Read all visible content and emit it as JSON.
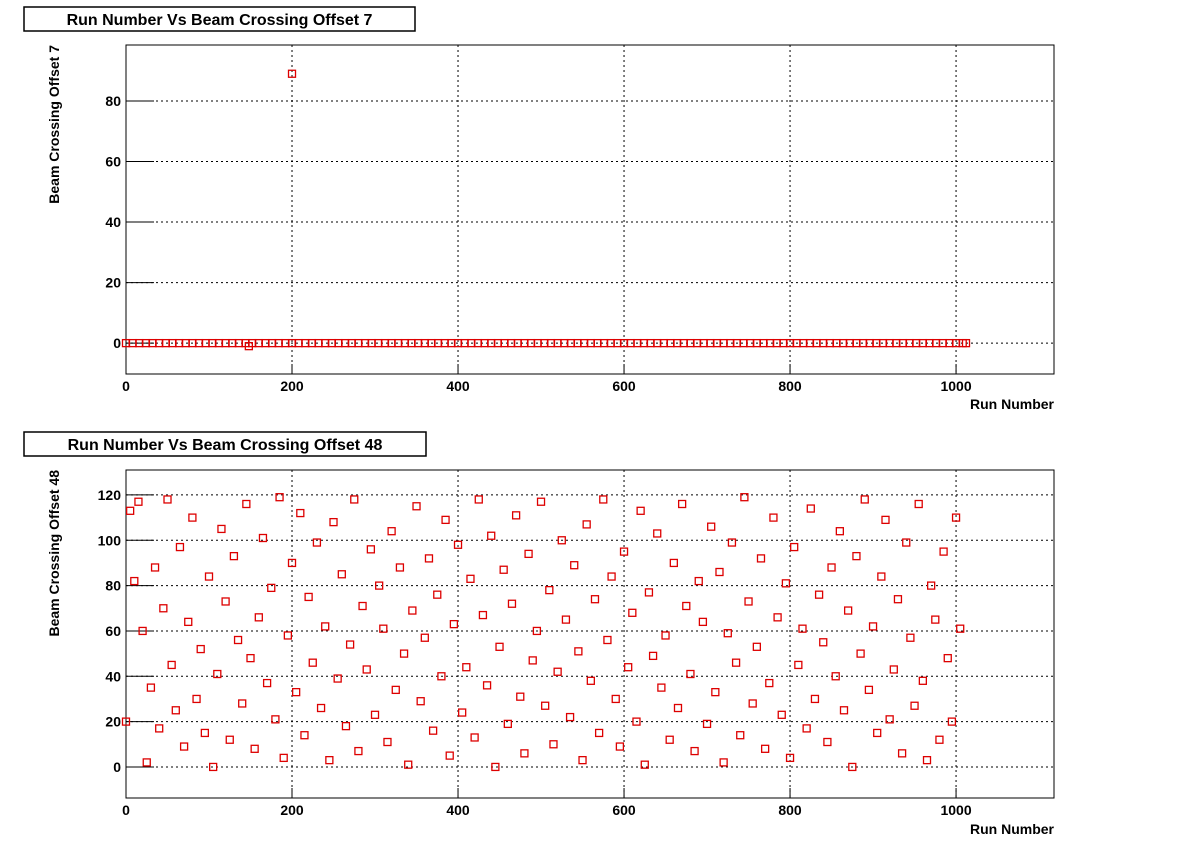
{
  "chart_data": [
    {
      "type": "scatter",
      "title": "Run Number Vs Beam Crossing Offset 7",
      "x_label": "Run Number",
      "y_label": "Beam Crossing Offset 7",
      "color": "#dd0000",
      "marker": "open-square",
      "grid": true,
      "xlim": [
        0,
        1118
      ],
      "ylim": [
        -10.2,
        98.5
      ],
      "xticks": [
        0,
        200,
        400,
        600,
        800,
        1000
      ],
      "yticks": [
        0,
        20,
        40,
        60,
        80
      ],
      "x": [
        0,
        8,
        16,
        24,
        32,
        40,
        48,
        56,
        64,
        72,
        80,
        88,
        96,
        104,
        112,
        120,
        128,
        136,
        144,
        148,
        152,
        160,
        168,
        176,
        184,
        192,
        200,
        200,
        208,
        216,
        224,
        232,
        240,
        248,
        256,
        264,
        272,
        280,
        288,
        296,
        304,
        312,
        320,
        328,
        336,
        344,
        352,
        360,
        368,
        376,
        384,
        392,
        400,
        408,
        416,
        424,
        432,
        440,
        448,
        456,
        464,
        472,
        480,
        488,
        496,
        504,
        512,
        520,
        528,
        536,
        544,
        552,
        560,
        568,
        576,
        584,
        592,
        600,
        608,
        616,
        624,
        632,
        640,
        648,
        656,
        664,
        672,
        680,
        688,
        696,
        704,
        712,
        720,
        728,
        736,
        744,
        752,
        760,
        768,
        776,
        784,
        792,
        800,
        808,
        816,
        824,
        832,
        840,
        848,
        856,
        864,
        872,
        880,
        888,
        896,
        904,
        912,
        920,
        928,
        936,
        944,
        952,
        960,
        968,
        976,
        984,
        992,
        1000,
        1008,
        1012
      ],
      "values": [
        0,
        0,
        0,
        0,
        0,
        0,
        0,
        0,
        0,
        0,
        0,
        0,
        0,
        0,
        0,
        0,
        0,
        0,
        0,
        -1,
        0,
        0,
        0,
        0,
        0,
        0,
        0,
        89,
        0,
        0,
        0,
        0,
        0,
        0,
        0,
        0,
        0,
        0,
        0,
        0,
        0,
        0,
        0,
        0,
        0,
        0,
        0,
        0,
        0,
        0,
        0,
        0,
        0,
        0,
        0,
        0,
        0,
        0,
        0,
        0,
        0,
        0,
        0,
        0,
        0,
        0,
        0,
        0,
        0,
        0,
        0,
        0,
        0,
        0,
        0,
        0,
        0,
        0,
        0,
        0,
        0,
        0,
        0,
        0,
        0,
        0,
        0,
        0,
        0,
        0,
        0,
        0,
        0,
        0,
        0,
        0,
        0,
        0,
        0,
        0,
        0,
        0,
        0,
        0,
        0,
        0,
        0,
        0,
        0,
        0,
        0,
        0,
        0,
        0,
        0,
        0,
        0,
        0,
        0,
        0,
        0,
        0,
        0,
        0,
        0,
        0,
        0,
        0,
        0,
        0
      ]
    },
    {
      "type": "scatter",
      "title": "Run Number Vs Beam Crossing Offset 48",
      "x_label": "Run Number",
      "y_label": "Beam Crossing Offset 48",
      "color": "#dd0000",
      "marker": "open-square",
      "grid": true,
      "xlim": [
        0,
        1118
      ],
      "ylim": [
        -13.7,
        131
      ],
      "xticks": [
        0,
        200,
        400,
        600,
        800,
        1000
      ],
      "yticks": [
        0,
        20,
        40,
        60,
        80,
        100,
        120
      ],
      "x": [
        0,
        5,
        10,
        15,
        20,
        25,
        30,
        35,
        40,
        45,
        50,
        55,
        60,
        65,
        70,
        75,
        80,
        85,
        90,
        95,
        100,
        105,
        110,
        115,
        120,
        125,
        130,
        135,
        140,
        145,
        150,
        155,
        160,
        165,
        170,
        175,
        180,
        185,
        190,
        195,
        200,
        205,
        210,
        215,
        220,
        225,
        230,
        235,
        240,
        245,
        250,
        255,
        260,
        265,
        270,
        275,
        280,
        285,
        290,
        295,
        300,
        305,
        310,
        315,
        320,
        325,
        330,
        335,
        340,
        345,
        350,
        355,
        360,
        365,
        370,
        375,
        380,
        385,
        390,
        395,
        400,
        405,
        410,
        415,
        420,
        425,
        430,
        435,
        440,
        445,
        450,
        455,
        460,
        465,
        470,
        475,
        480,
        485,
        490,
        495,
        500,
        505,
        510,
        515,
        520,
        525,
        530,
        535,
        540,
        545,
        550,
        555,
        560,
        565,
        570,
        575,
        580,
        585,
        590,
        595,
        600,
        605,
        610,
        615,
        620,
        625,
        630,
        635,
        640,
        645,
        650,
        655,
        660,
        665,
        670,
        675,
        680,
        685,
        690,
        695,
        700,
        705,
        710,
        715,
        720,
        725,
        730,
        735,
        740,
        745,
        750,
        755,
        760,
        765,
        770,
        775,
        780,
        785,
        790,
        795,
        800,
        805,
        810,
        815,
        820,
        825,
        830,
        835,
        840,
        845,
        850,
        855,
        860,
        865,
        870,
        875,
        880,
        885,
        890,
        895,
        900,
        905,
        910,
        915,
        920,
        925,
        930,
        935,
        940,
        945,
        950,
        955,
        960,
        965,
        970,
        975,
        980,
        985,
        990,
        995,
        1000,
        1005
      ],
      "values": [
        20,
        113,
        82,
        117,
        60,
        2,
        35,
        88,
        17,
        70,
        118,
        45,
        25,
        97,
        9,
        64,
        110,
        30,
        52,
        15,
        84,
        0,
        41,
        105,
        73,
        12,
        93,
        56,
        28,
        116,
        48,
        8,
        66,
        101,
        37,
        79,
        21,
        119,
        4,
        58,
        90,
        33,
        112,
        14,
        75,
        46,
        99,
        26,
        62,
        3,
        108,
        39,
        85,
        18,
        54,
        118,
        7,
        71,
        43,
        96,
        23,
        80,
        61,
        11,
        104,
        34,
        88,
        50,
        1,
        69,
        115,
        29,
        57,
        92,
        16,
        76,
        40,
        109,
        5,
        63,
        98,
        24,
        44,
        83,
        13,
        118,
        67,
        36,
        102,
        0,
        53,
        87,
        19,
        72,
        111,
        31,
        6,
        94,
        47,
        60,
        117,
        27,
        78,
        10,
        42,
        100,
        65,
        22,
        89,
        51,
        3,
        107,
        38,
        74,
        15,
        118,
        56,
        84,
        30,
        9,
        95,
        44,
        68,
        20,
        113,
        1,
        77,
        49,
        103,
        35,
        58,
        12,
        90,
        26,
        116,
        71,
        41,
        7,
        82,
        64,
        19,
        106,
        33,
        86,
        2,
        59,
        99,
        46,
        14,
        119,
        73,
        28,
        53,
        92,
        8,
        37,
        110,
        66,
        23,
        81,
        4,
        97,
        45,
        61,
        17,
        114,
        30,
        76,
        55,
        11,
        88,
        40,
        104,
        25,
        69,
        0,
        93,
        50,
        118,
        34,
        62,
        15,
        84,
        109,
        21,
        43,
        74,
        6,
        99,
        57,
        27,
        116,
        38,
        3,
        80,
        65,
        12,
        95,
        48,
        20,
        110,
        61
      ]
    }
  ]
}
